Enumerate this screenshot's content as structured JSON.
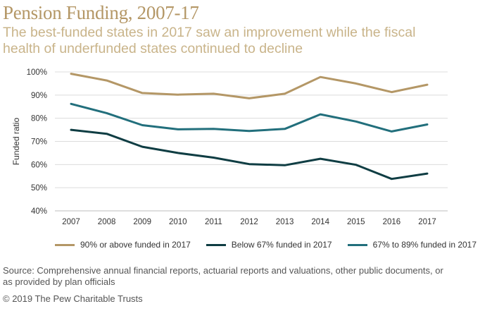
{
  "header": {
    "title": "Pension Funding, 2007-17",
    "subtitle": "The best-funded states in 2017 saw an improvement while the fiscal health of underfunded states continued to decline"
  },
  "footer": {
    "source": "Source: Comprehensive annual financial reports, actuarial reports and valuations, other public documents, or as provided by plan officials",
    "copyright": "© 2019 The Pew Charitable Trusts"
  },
  "chart_data": {
    "type": "line",
    "title": "Pension Funding, 2007-17",
    "ylabel": "Funded ratio",
    "xlabel": "",
    "x": [
      "2007",
      "2008",
      "2009",
      "2010",
      "2011",
      "2012",
      "2013",
      "2014",
      "2015",
      "2016",
      "2017"
    ],
    "yticks": [
      "40%",
      "50%",
      "60%",
      "70%",
      "80%",
      "90%",
      "100%"
    ],
    "ylim": [
      40,
      100
    ],
    "grid": "horizontal",
    "legend_position": "bottom",
    "series": [
      {
        "name": "90% or above funded in 2017",
        "color": "#b49766",
        "values": [
          99.2,
          96.3,
          90.9,
          90.2,
          90.6,
          88.6,
          90.6,
          97.8,
          95.0,
          91.3,
          94.5
        ]
      },
      {
        "name": "Below 67% funded in 2017",
        "color": "#0f3d43",
        "values": [
          75.0,
          73.3,
          67.7,
          65.0,
          63.0,
          60.2,
          59.7,
          62.5,
          59.9,
          53.8,
          56.1
        ]
      },
      {
        "name": "67% to 89% funded in 2017",
        "color": "#226f7c",
        "values": [
          86.2,
          82.2,
          77.0,
          75.2,
          75.4,
          74.5,
          75.4,
          81.7,
          78.6,
          74.3,
          77.3
        ]
      }
    ]
  }
}
